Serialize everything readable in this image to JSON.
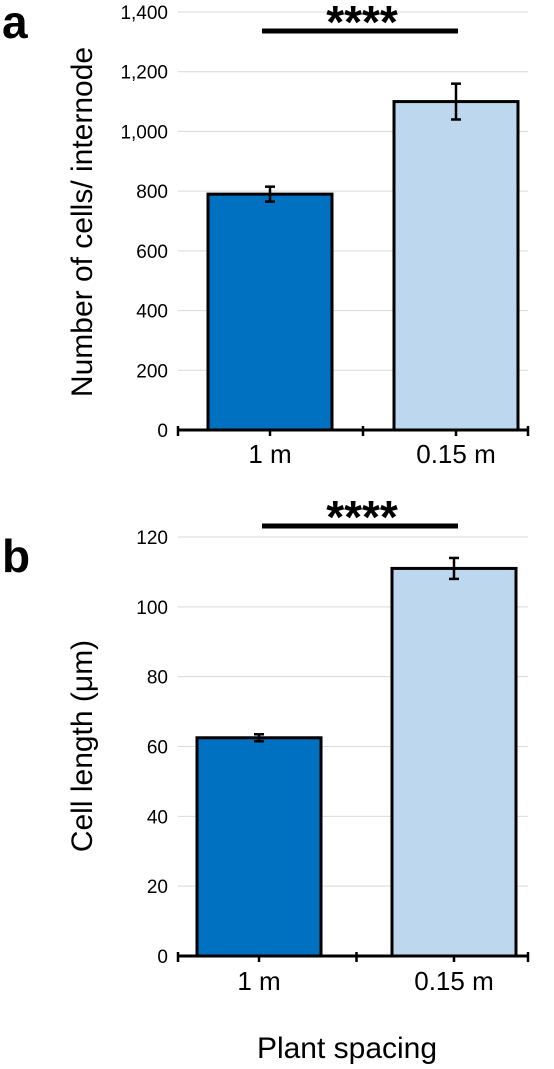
{
  "chart_data": [
    {
      "type": "bar",
      "panel_label": "a",
      "categories": [
        "1 m",
        "0.15 m"
      ],
      "values": [
        790,
        1100
      ],
      "errors": [
        25,
        60
      ],
      "colors": [
        "#0070C0",
        "#BDD7EE"
      ],
      "ylabel": "Number of cells/ internode",
      "ylim": [
        0,
        1400
      ],
      "yticks": [
        0,
        200,
        400,
        600,
        800,
        1000,
        1200,
        1400
      ],
      "ytick_labels": [
        "0",
        "200",
        "400",
        "600",
        "800",
        "1,000",
        "1,200",
        "1,400"
      ],
      "significance": "****",
      "grid": true
    },
    {
      "type": "bar",
      "panel_label": "b",
      "categories": [
        "1 m",
        "0.15 m"
      ],
      "values": [
        62.5,
        111
      ],
      "errors": [
        1,
        3
      ],
      "colors": [
        "#0070C0",
        "#BDD7EE"
      ],
      "ylabel": "Cell length (μm)",
      "ylim": [
        0,
        120
      ],
      "yticks": [
        0,
        20,
        40,
        60,
        80,
        100,
        120
      ],
      "ytick_labels": [
        "0",
        "20",
        "40",
        "60",
        "80",
        "100",
        "120"
      ],
      "significance": "****",
      "grid": true
    }
  ],
  "xlabel": "Plant spacing"
}
